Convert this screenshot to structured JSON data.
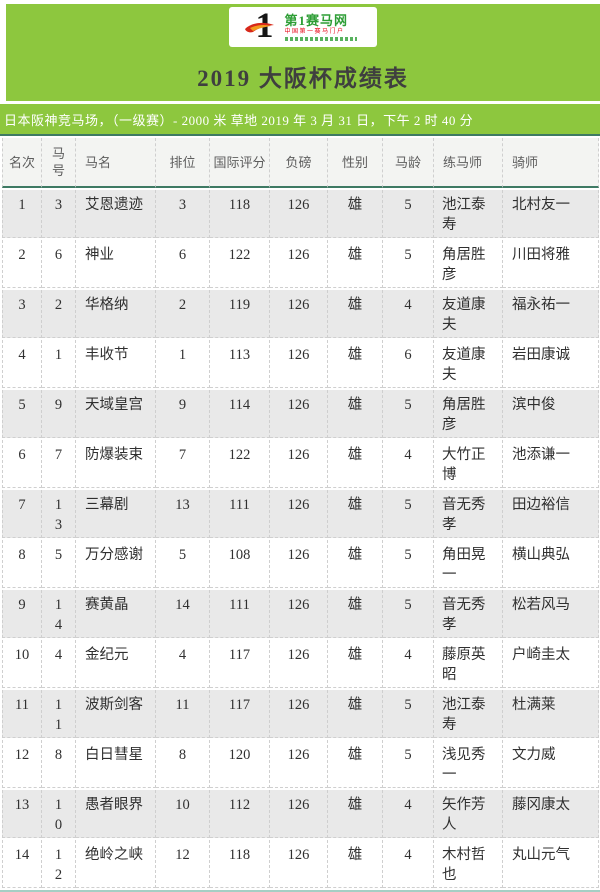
{
  "logo": {
    "mark_icon": "number-1-flame-icon",
    "site_name": "第1赛马网",
    "tagline": "中国第一赛马门户"
  },
  "header": {
    "title": "2019 大阪杯成绩表"
  },
  "race_info": {
    "text": "日本阪神竞马场，（一级赛）- 2000 米 草地 2019 年 3 月 31 日，下午 2 时 40 分"
  },
  "table": {
    "columns": [
      "名次",
      "马号",
      "马名",
      "排位",
      "国际评分",
      "负磅",
      "性别",
      "马龄",
      "练马师",
      "骑师"
    ],
    "column_keys": [
      "rank",
      "horse-no",
      "horse-name",
      "draw",
      "intl-rating",
      "weight",
      "sex",
      "age",
      "trainer",
      "jockey"
    ],
    "rows": [
      [
        "1",
        "3",
        "艾恩遗迹",
        "3",
        "118",
        "126",
        "雄",
        "5",
        "池江泰寿",
        "北村友一"
      ],
      [
        "2",
        "6",
        "神业",
        "6",
        "122",
        "126",
        "雄",
        "5",
        "角居胜彦",
        "川田将雅"
      ],
      [
        "3",
        "2",
        "华格纳",
        "2",
        "119",
        "126",
        "雄",
        "4",
        "友道康夫",
        "福永祐一"
      ],
      [
        "4",
        "1",
        "丰收节",
        "1",
        "113",
        "126",
        "雄",
        "6",
        "友道康夫",
        "岩田康诚"
      ],
      [
        "5",
        "9",
        "天域皇宫",
        "9",
        "114",
        "126",
        "雄",
        "5",
        "角居胜彦",
        "滨中俊"
      ],
      [
        "6",
        "7",
        "防爆装束",
        "7",
        "122",
        "126",
        "雄",
        "4",
        "大竹正博",
        "池添谦一"
      ],
      [
        "7",
        "13",
        "三幕剧",
        "13",
        "111",
        "126",
        "雄",
        "5",
        "音无秀孝",
        "田边裕信"
      ],
      [
        "8",
        "5",
        "万分感谢",
        "5",
        "108",
        "126",
        "雄",
        "5",
        "角田晃一",
        "横山典弘"
      ],
      [
        "9",
        "14",
        "赛黄晶",
        "14",
        "111",
        "126",
        "雄",
        "5",
        "音无秀孝",
        "松若风马"
      ],
      [
        "10",
        "4",
        "金纪元",
        "4",
        "117",
        "126",
        "雄",
        "4",
        "藤原英昭",
        "户崎圭太"
      ],
      [
        "11",
        "11",
        "波斯剑客",
        "11",
        "117",
        "126",
        "雄",
        "5",
        "池江泰寿",
        "杜满莱"
      ],
      [
        "12",
        "8",
        "白日彗星",
        "8",
        "120",
        "126",
        "雄",
        "5",
        "浅见秀一",
        "文力威"
      ],
      [
        "13",
        "10",
        "愚者眼界",
        "10",
        "112",
        "126",
        "雄",
        "4",
        "矢作芳人",
        "藤冈康太"
      ],
      [
        "14",
        "12",
        "绝岭之峡",
        "12",
        "118",
        "126",
        "雄",
        "4",
        "木村哲也",
        "丸山元气"
      ]
    ]
  },
  "colors": {
    "banner_green": "#8dc73e",
    "rule_dark": "#3e7a64",
    "rule_light": "#a4cec4",
    "row_odd": "#e9e9e9",
    "row_even": "#ffffff",
    "logo_green": "#2e9e36",
    "logo_red": "#e60012"
  }
}
